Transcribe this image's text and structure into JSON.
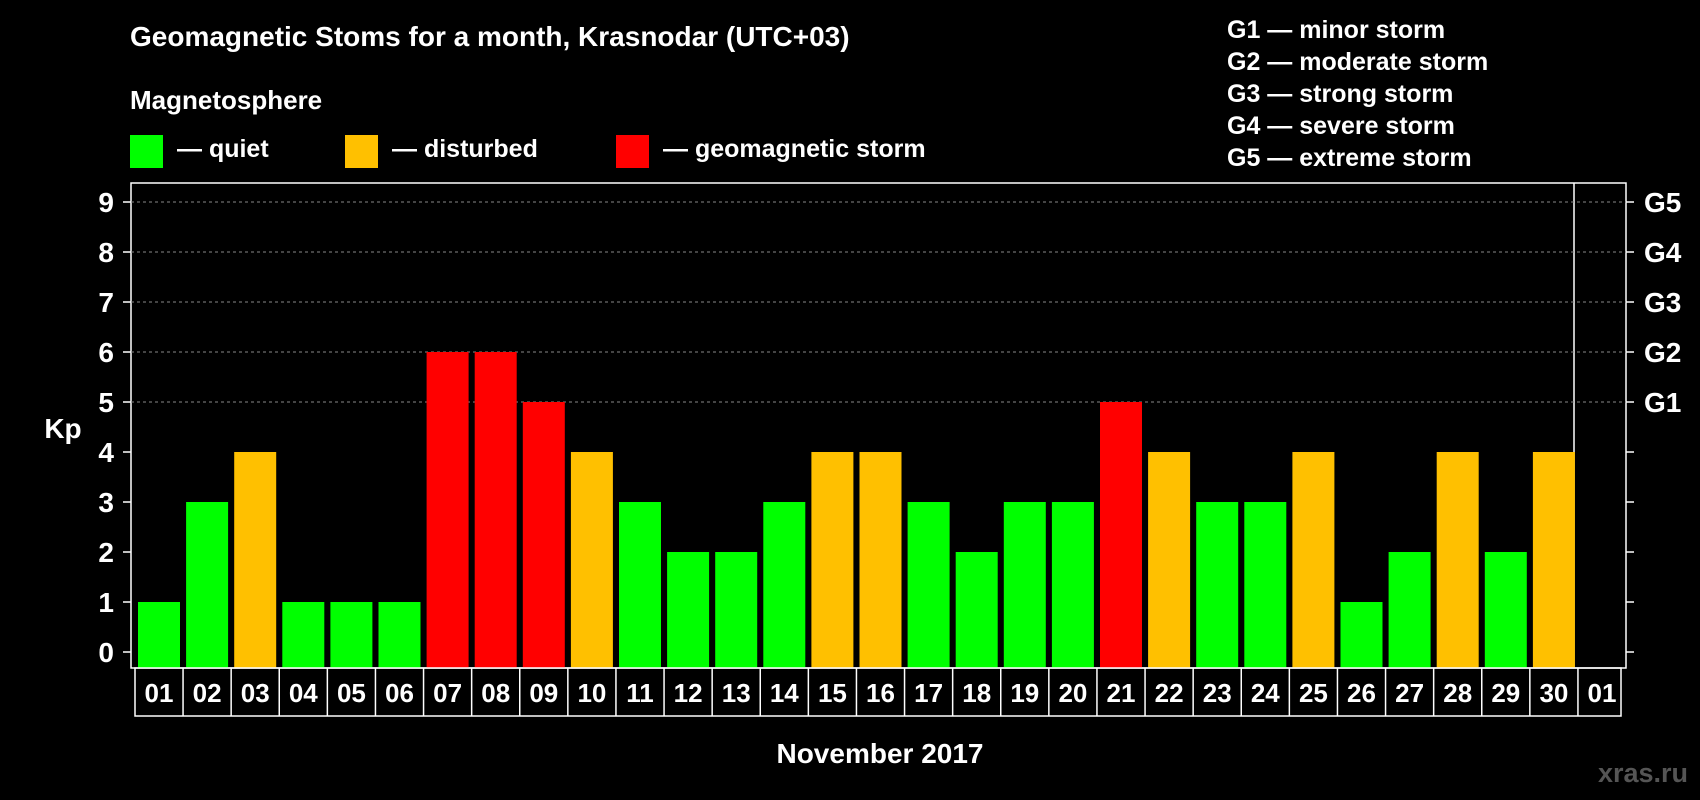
{
  "title": "Geomagnetic Stoms for a month, Krasnodar (UTC+03)",
  "magnetosphere_label": "Magnetosphere",
  "legend": [
    {
      "label": "— quiet",
      "color": "#00ff00"
    },
    {
      "label": "— disturbed",
      "color": "#ffc000"
    },
    {
      "label": "— geomagnetic storm",
      "color": "#ff0000"
    }
  ],
  "storm_scale": [
    "G1 — minor storm",
    "G2 — moderate storm",
    "G3 — strong storm",
    "G4 — severe storm",
    "G5 — extreme storm"
  ],
  "watermark": "xras.ru",
  "chart_data": {
    "type": "bar",
    "title": "Geomagnetic Stoms for a month, Krasnodar (UTC+03)",
    "xlabel": "November 2017",
    "ylabel": "Kp",
    "ylim": [
      0,
      9
    ],
    "yticks": [
      "0",
      "1",
      "2",
      "3",
      "4",
      "5",
      "6",
      "7",
      "8",
      "9"
    ],
    "right_ticks": [
      {
        "kp": 5,
        "label": "G1"
      },
      {
        "kp": 6,
        "label": "G2"
      },
      {
        "kp": 7,
        "label": "G3"
      },
      {
        "kp": 8,
        "label": "G4"
      },
      {
        "kp": 9,
        "label": "G5"
      }
    ],
    "dashed_grid_levels": [
      5,
      6,
      7,
      8,
      9
    ],
    "categories": [
      "01",
      "02",
      "03",
      "04",
      "05",
      "06",
      "07",
      "08",
      "09",
      "10",
      "11",
      "12",
      "13",
      "14",
      "15",
      "16",
      "17",
      "18",
      "19",
      "20",
      "21",
      "22",
      "23",
      "24",
      "25",
      "26",
      "27",
      "28",
      "29",
      "30",
      "01"
    ],
    "values": [
      1,
      3,
      4,
      1,
      1,
      1,
      6,
      6,
      5,
      4,
      3,
      2,
      2,
      3,
      4,
      4,
      3,
      2,
      3,
      3,
      5,
      4,
      3,
      3,
      4,
      1,
      2,
      4,
      2,
      4,
      null
    ],
    "color_thresholds": {
      "quiet": "#00ff00",
      "disturbed": "#ffc000",
      "storm": "#ff0000"
    }
  }
}
